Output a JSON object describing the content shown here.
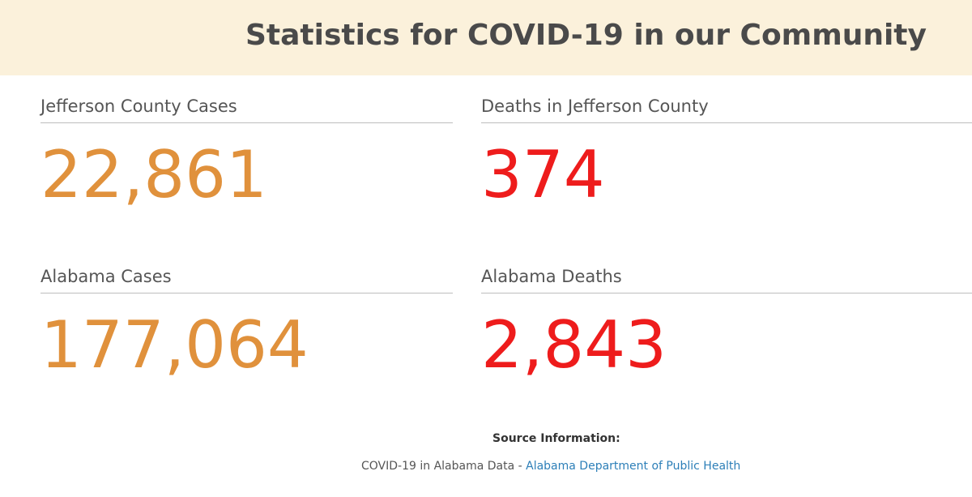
{
  "header": {
    "title": "Statistics for COVID-19 in our Community"
  },
  "stats": [
    {
      "label": "Jefferson County Cases",
      "value": "22,861",
      "color": "#e0913c"
    },
    {
      "label": "Deaths in Jefferson County",
      "value": "374",
      "color": "#ee1c1c"
    },
    {
      "label": "Alabama Cases",
      "value": "177,064",
      "color": "#e0913c"
    },
    {
      "label": "Alabama Deaths",
      "value": "2,843",
      "color": "#ee1c1c"
    }
  ],
  "source": {
    "heading": "Source Information:",
    "text": "COVID-19 in Alabama Data",
    "separator": " - ",
    "link_label": "Alabama Department of Public Health"
  },
  "colors": {
    "header_bg": "#fbf1db",
    "case_color": "#e0913c",
    "death_color": "#ee1c1c",
    "link_color": "#2d7fb8"
  }
}
